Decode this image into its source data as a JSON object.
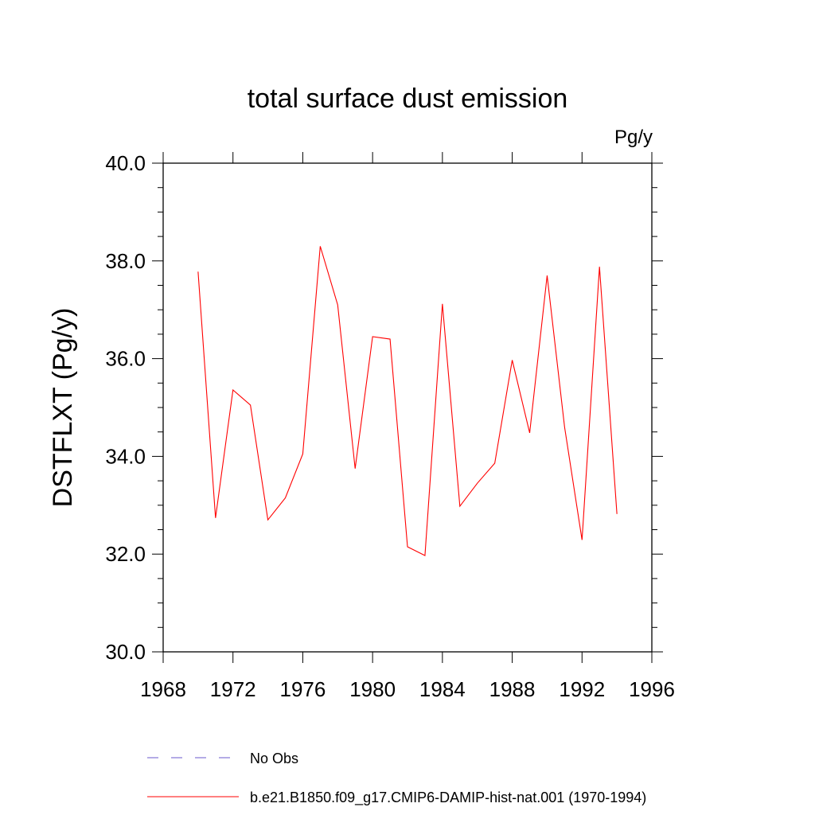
{
  "chart_data": {
    "type": "line",
    "title": "total surface dust emission",
    "units": "Pg/y",
    "ylabel": "DSTFLXT  (Pg/y)",
    "xlabel": "",
    "xlim": [
      1968,
      1996
    ],
    "ylim": [
      30.0,
      40.0
    ],
    "x_ticks": [
      1968,
      1972,
      1976,
      1980,
      1984,
      1988,
      1992,
      1996
    ],
    "x_tick_labels": [
      "1968",
      "1972",
      "1976",
      "1980",
      "1984",
      "1988",
      "1992",
      "1996"
    ],
    "y_ticks": [
      30.0,
      32.0,
      34.0,
      36.0,
      38.0,
      40.0
    ],
    "y_tick_labels": [
      "30.0",
      "32.0",
      "34.0",
      "36.0",
      "38.0",
      "40.0"
    ],
    "grid": false,
    "legend_position": "bottom",
    "x": [
      1970,
      1971,
      1972,
      1973,
      1974,
      1975,
      1976,
      1977,
      1978,
      1979,
      1980,
      1981,
      1982,
      1983,
      1984,
      1985,
      1986,
      1987,
      1988,
      1989,
      1990,
      1991,
      1992,
      1993,
      1994
    ],
    "series": [
      {
        "name": "b.e21.B1850.f09_g17.CMIP6-DAMIP-hist-nat.001 (1970-1994)",
        "color": "#ff0000",
        "dash": "solid",
        "values": [
          37.78,
          32.74,
          35.36,
          35.05,
          32.7,
          33.15,
          34.05,
          38.3,
          37.1,
          33.75,
          36.45,
          36.4,
          32.15,
          31.97,
          37.12,
          32.98,
          33.45,
          33.86,
          35.97,
          34.48,
          37.7,
          34.6,
          32.29,
          37.88,
          32.82
        ]
      }
    ],
    "legend": [
      {
        "label": "No Obs",
        "color": "#6a5acd",
        "dash": "dashed"
      },
      {
        "label": "b.e21.B1850.f09_g17.CMIP6-DAMIP-hist-nat.001 (1970-1994)",
        "color": "#ff0000",
        "dash": "solid"
      }
    ]
  }
}
